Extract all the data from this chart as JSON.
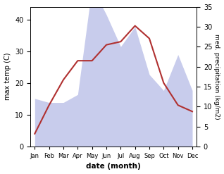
{
  "months": [
    "Jan",
    "Feb",
    "Mar",
    "Apr",
    "May",
    "Jun",
    "Jul",
    "Aug",
    "Sep",
    "Oct",
    "Nov",
    "Dec"
  ],
  "max_temp": [
    4,
    13,
    21,
    27,
    27,
    32,
    33,
    38,
    34,
    20,
    13,
    11
  ],
  "precipitation": [
    12,
    11,
    11,
    13,
    40,
    33,
    25,
    30,
    18,
    14,
    23,
    14
  ],
  "temp_color": "#b03030",
  "precip_fill_color": "#c8ccec",
  "ylabel_left": "max temp (C)",
  "ylabel_right": "med. precipitation (kg/m2)",
  "xlabel": "date (month)",
  "ylim_left": [
    0,
    44
  ],
  "ylim_right": [
    0,
    35
  ],
  "left_yticks": [
    0,
    10,
    20,
    30,
    40
  ],
  "right_yticks": [
    0,
    5,
    10,
    15,
    20,
    25,
    30,
    35
  ]
}
